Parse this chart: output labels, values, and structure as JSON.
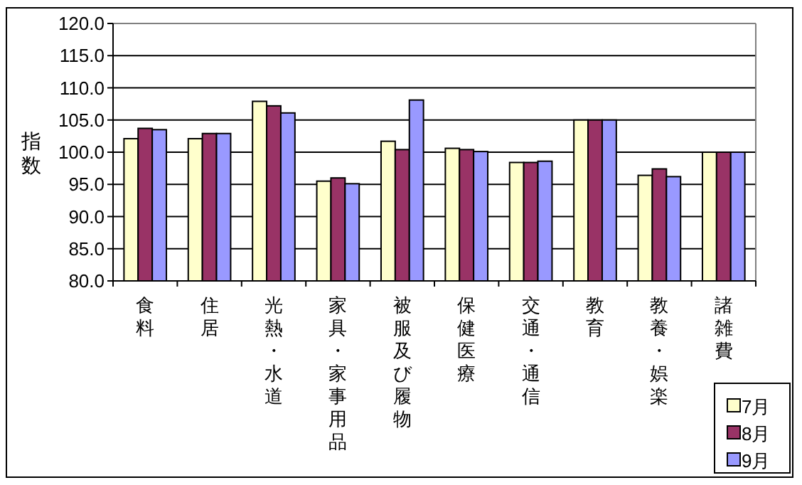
{
  "chart_data": {
    "type": "bar",
    "ylabel": "指数",
    "categories": [
      "食料",
      "住居",
      "光熱・水道",
      "家具・家事用品",
      "被服及び履物",
      "保健医療",
      "交通・通信",
      "教育",
      "教養・娯楽",
      "諸雑費"
    ],
    "series": [
      {
        "name": "7月",
        "color": "#ffffcc",
        "values": [
          102.1,
          102.1,
          107.9,
          95.5,
          101.7,
          100.6,
          98.4,
          105.0,
          96.4,
          100.0
        ]
      },
      {
        "name": "8月",
        "color": "#993366",
        "values": [
          103.7,
          102.9,
          107.2,
          96.0,
          100.4,
          100.4,
          98.4,
          105.0,
          97.4,
          100.0
        ]
      },
      {
        "name": "9月",
        "color": "#9999ff",
        "values": [
          103.5,
          102.9,
          106.1,
          95.1,
          108.1,
          100.1,
          98.6,
          105.0,
          96.2,
          100.0
        ]
      }
    ],
    "ylim": [
      80,
      120
    ],
    "yticks": [
      {
        "value": 80,
        "label": "80.0"
      },
      {
        "value": 85,
        "label": "85.0"
      },
      {
        "value": 90,
        "label": "90.0"
      },
      {
        "value": 95,
        "label": "95.0"
      },
      {
        "value": 100,
        "label": "100.0"
      },
      {
        "value": 105,
        "label": "105.0"
      },
      {
        "value": 110,
        "label": "110.0"
      },
      {
        "value": 115,
        "label": "115.0"
      },
      {
        "value": 120,
        "label": "120.0"
      }
    ],
    "grid": "y",
    "legend": "bottom right"
  }
}
